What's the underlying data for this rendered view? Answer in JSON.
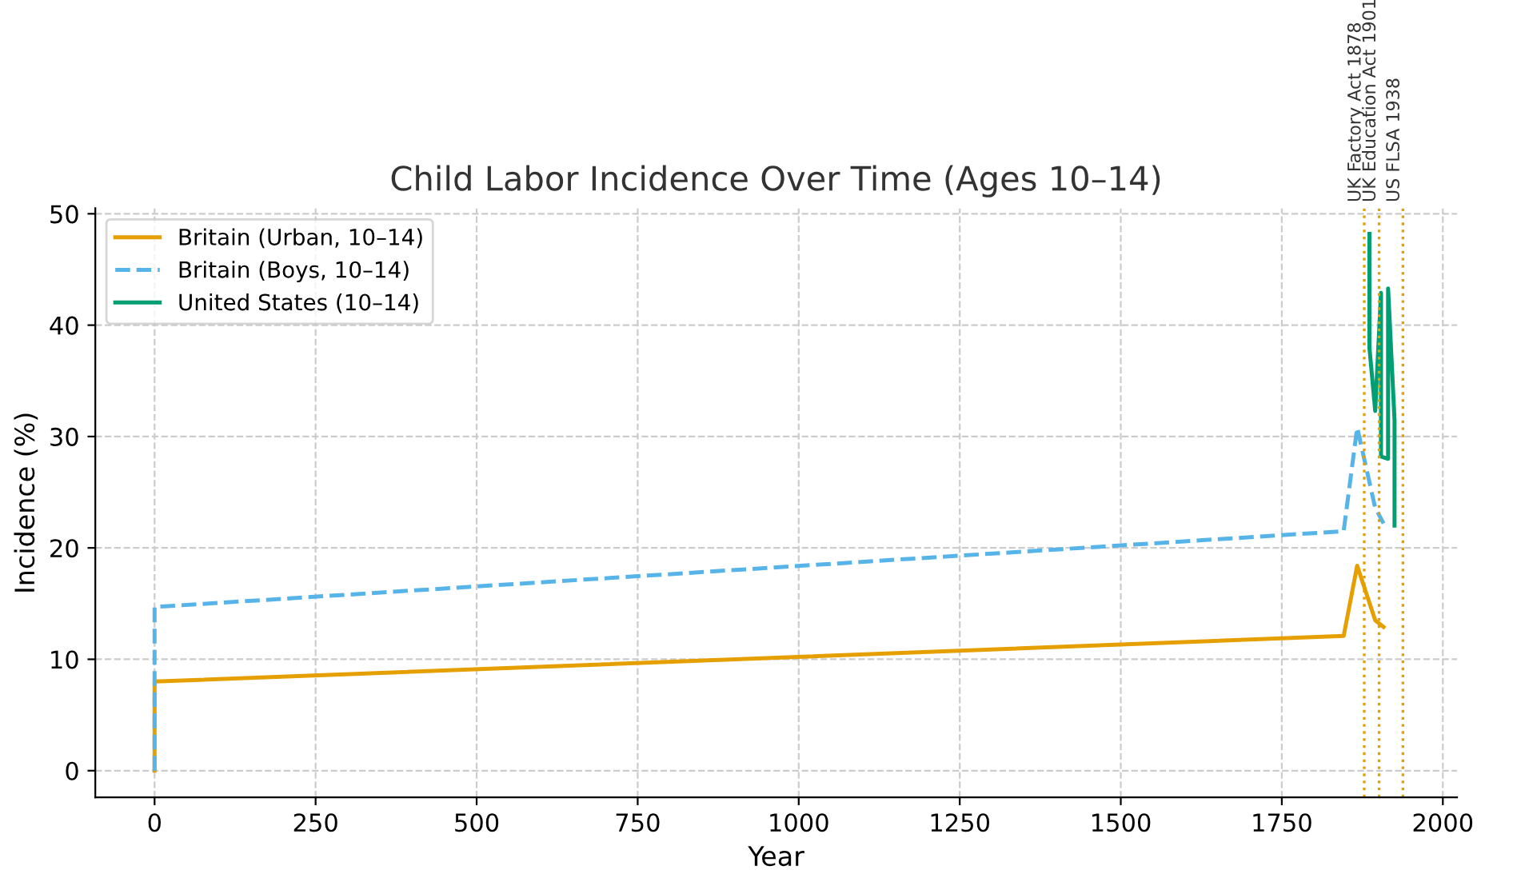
{
  "chart_data": {
    "type": "line",
    "title": "Child Labor Incidence Over Time (Ages 10–14)",
    "xlabel": "Year",
    "ylabel": "Incidence (%)",
    "series": [
      {
        "name": "Britain (Urban, 10–14)",
        "color": "#e69f00",
        "line_style": "solid",
        "x": [
          0,
          0,
          1846,
          1867,
          1895,
          1908
        ],
        "values": [
          0,
          8.0,
          12.1,
          18.4,
          13.5,
          12.9
        ]
      },
      {
        "name": "Britain (Boys, 10–14)",
        "color": "#56b4e9",
        "line_style": "dashed",
        "x": [
          0,
          0,
          1846,
          1867,
          1895,
          1908
        ],
        "values": [
          0,
          14.7,
          21.5,
          30.8,
          23.6,
          22.2
        ]
      },
      {
        "name": "United States (10–14)",
        "color": "#009e73",
        "line_style": "solid",
        "x": [
          1886,
          1886,
          1895,
          1904,
          1904,
          1915,
          1915,
          1925,
          1925
        ],
        "values": [
          48.2,
          38.0,
          32.3,
          42.9,
          28.2,
          28.0,
          43.3,
          31.5,
          22.0
        ]
      }
    ],
    "ref_lines": [
      {
        "axis": "x",
        "value": 1878,
        "label": "UK Factory Act 1878",
        "color": "#e69f00",
        "line_style": "dotted"
      },
      {
        "axis": "x",
        "value": 1901,
        "label": "UK Education Act 1901",
        "color": "#e69f00",
        "line_style": "dotted"
      },
      {
        "axis": "x",
        "value": 1938,
        "label": "US FLSA 1938",
        "color": "#e69f00",
        "line_style": "dotted"
      }
    ],
    "xlim": [
      -92,
      2022
    ],
    "xticks": [
      0,
      250,
      500,
      750,
      1000,
      1250,
      1500,
      1750,
      2000
    ],
    "ylim": [
      -2.4,
      50.5
    ],
    "yticks": [
      0,
      10,
      20,
      30,
      40,
      50
    ],
    "grid": true,
    "legend": "top left"
  }
}
